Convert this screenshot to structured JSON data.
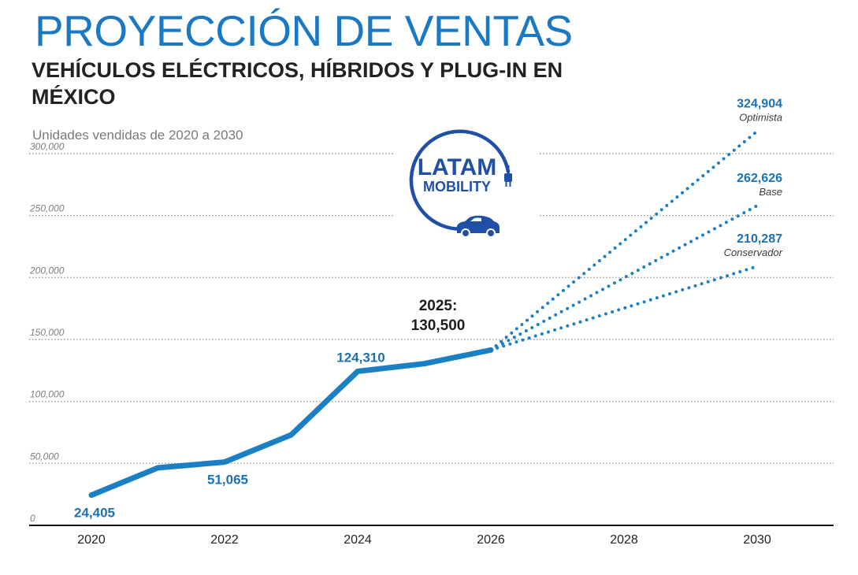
{
  "header": {
    "title": "PROYECCIÓN DE VENTAS",
    "subtitle": "VEHÍCULOS ELÉCTRICOS, HÍBRIDOS Y PLUG-IN EN MÉXICO",
    "caption": "Unidades vendidas de 2020 a 2030"
  },
  "logo": {
    "line1": "LATAM",
    "line2": "MOBILITY",
    "icons": [
      "plug-icon",
      "car-icon"
    ]
  },
  "colors": {
    "accent": "#1979c4",
    "line": "#1b7fc4",
    "label": "#1b72b3",
    "logo": "#1f4fa6",
    "grid": "#9a9a9a"
  },
  "chart_data": {
    "type": "line",
    "title": "PROYECCIÓN DE VENTAS",
    "subtitle": "VEHÍCULOS ELÉCTRICOS, HÍBRIDOS Y PLUG-IN EN MÉXICO",
    "xlabel": "",
    "ylabel": "Unidades vendidas de 2020 a 2030",
    "xlim": [
      2020,
      2030
    ],
    "ylim": [
      0,
      300000
    ],
    "xticks": [
      "2020",
      "2022",
      "2024",
      "2026",
      "2028",
      "2030"
    ],
    "yticks": [
      "0",
      "50,000",
      "100,000",
      "150,000",
      "200,000",
      "250,000",
      "300,000"
    ],
    "grid": true,
    "series": [
      {
        "style": "solid",
        "x": [
          2020,
          2021,
          2022,
          2023,
          2024,
          2025,
          2026
        ],
        "y": [
          24405,
          46500,
          51065,
          73000,
          124310,
          130500,
          141500
        ]
      }
    ],
    "projections": [
      {
        "name": "Optimista",
        "label": "324,904",
        "x": [
          2026,
          2030
        ],
        "y": [
          141500,
          318000
        ]
      },
      {
        "name": "Base",
        "label": "262,626",
        "x": [
          2026,
          2030
        ],
        "y": [
          141500,
          258000
        ]
      },
      {
        "name": "Conservador",
        "label": "210,287",
        "x": [
          2026,
          2030
        ],
        "y": [
          141500,
          209000
        ]
      }
    ],
    "annotations": [
      {
        "text": "24,405",
        "x": 2020,
        "y": 24405,
        "position": "below"
      },
      {
        "text": "51,065",
        "x": 2022,
        "y": 51065,
        "position": "below"
      },
      {
        "text": "124,310",
        "x": 2024,
        "y": 124310,
        "position": "above"
      }
    ],
    "callout": {
      "year": "2025:",
      "value": "130,500"
    }
  }
}
